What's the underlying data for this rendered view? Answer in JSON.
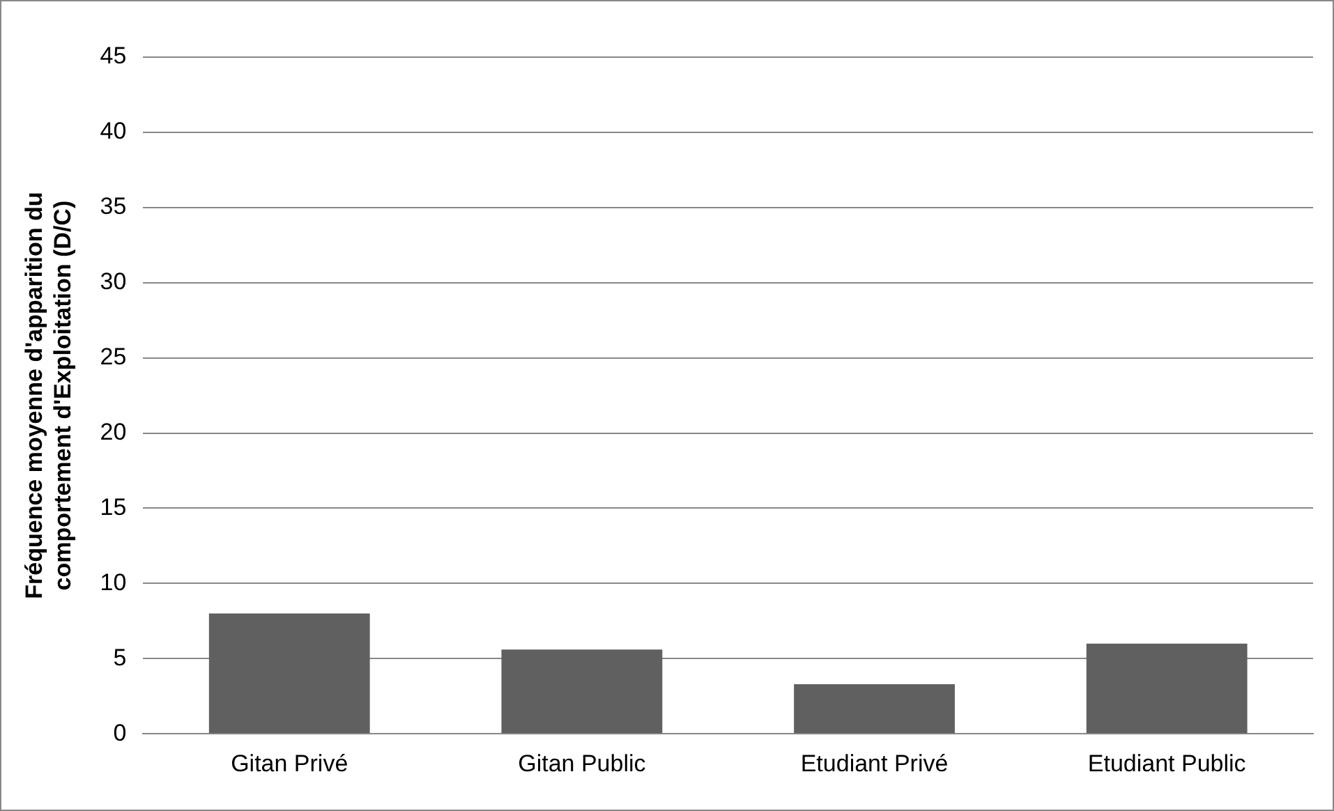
{
  "chart_data": {
    "type": "bar",
    "ylabel": "Fréquence moyenne d'apparition du comportement d'Exploitation (D/C)",
    "categories": [
      "Gitan Privé",
      "Gitan Public",
      "Etudiant Privé",
      "Etudiant Public"
    ],
    "values": [
      8.0,
      5.6,
      3.3,
      6.0
    ],
    "color": "#606060",
    "ylim": [
      0,
      45
    ],
    "yticks": [
      0,
      5,
      10,
      15,
      20,
      25,
      30,
      35,
      40,
      45
    ],
    "grid": "y",
    "legend": false
  }
}
